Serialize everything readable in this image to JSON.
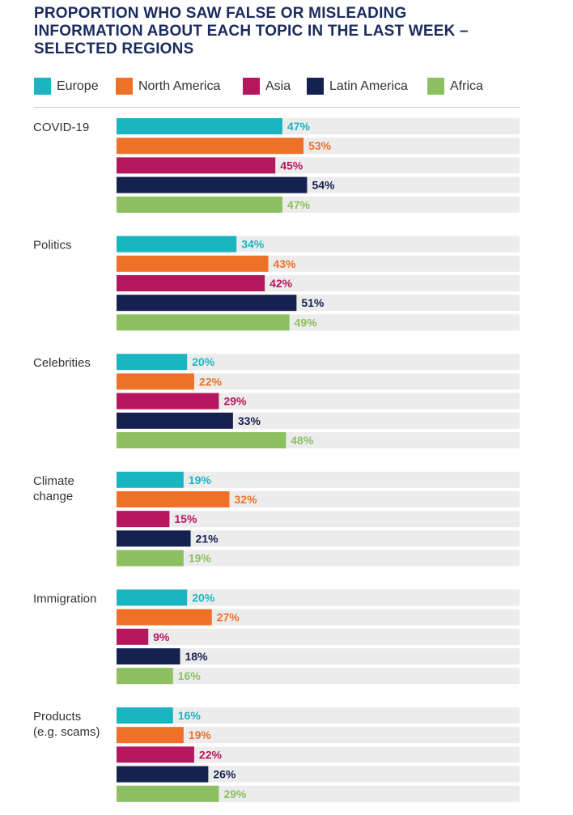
{
  "chart_data": {
    "type": "bar",
    "orientation": "horizontal",
    "title_lines": [
      "PROPORTION WHO SAW FALSE OR MISLEADING",
      "INFORMATION ABOUT EACH TOPIC IN THE LAST WEEK –",
      "SELECTED REGIONS"
    ],
    "xlim": [
      0,
      100
    ],
    "unit": "%",
    "legend_position": "top",
    "categories": [
      [
        "COVID-19"
      ],
      [
        "Politics"
      ],
      [
        "Celebrities"
      ],
      [
        "Climate",
        "change"
      ],
      [
        "Immigration"
      ],
      [
        "Products",
        "(e.g. scams)"
      ]
    ],
    "series": [
      {
        "name": "Europe",
        "color": "#1bb5c1",
        "label_color": "#1bb5c1",
        "values": [
          47,
          34,
          20,
          19,
          20,
          16
        ]
      },
      {
        "name": "North America",
        "color": "#ee7127",
        "label_color": "#ee7127",
        "values": [
          53,
          43,
          22,
          32,
          27,
          19
        ]
      },
      {
        "name": "Asia",
        "color": "#b5175f",
        "label_color": "#b5175f",
        "values": [
          45,
          42,
          29,
          15,
          9,
          22
        ]
      },
      {
        "name": "Latin America",
        "color": "#15214f",
        "label_color": "#15214f",
        "values": [
          54,
          51,
          33,
          21,
          18,
          26
        ]
      },
      {
        "name": "Africa",
        "color": "#8cc060",
        "label_color": "#8cc060",
        "values": [
          47,
          49,
          48,
          19,
          16,
          29
        ]
      }
    ],
    "track_color": "#ececec"
  }
}
